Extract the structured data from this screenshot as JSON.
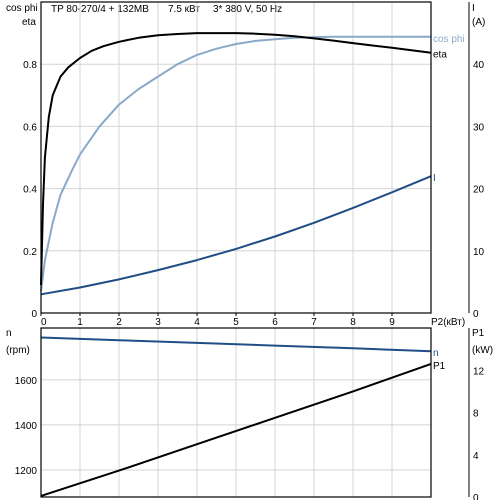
{
  "header": {
    "model": "TP 80-270/4 + 132MB",
    "power": "7.5 кВт",
    "supply": "3* 380 V, 50 Hz"
  },
  "colors": {
    "axes": "#000000",
    "cosphi": "#8aa9c8",
    "eta": "#000000",
    "current": "#1f4e87",
    "speed": "#1f4e87",
    "p1": "#000000",
    "grid": "#d4d4d4"
  },
  "chart_data": [
    {
      "type": "line",
      "xlabel": "P2(кВт)",
      "x_ticks": [
        "0",
        "1",
        "2",
        "3",
        "4",
        "5",
        "6",
        "7",
        "8",
        "9"
      ],
      "xlim": [
        0,
        10
      ],
      "grid": true,
      "left_axis": {
        "label_lines": [
          "cos phi",
          "eta"
        ],
        "ticks": [
          "0",
          "0.2",
          "0.4",
          "0.6",
          "0.8"
        ],
        "ylim": [
          0,
          1.0
        ]
      },
      "right_axis": {
        "label_lines": [
          "I",
          "(A)"
        ],
        "ticks": [
          "0",
          "10",
          "20",
          "30",
          "40"
        ],
        "ylim": [
          0,
          50
        ]
      },
      "series": [
        {
          "name": "cos phi",
          "axis": "left",
          "color": "#8aa9c8",
          "x": [
            0.0,
            0.1,
            0.3,
            0.5,
            0.8,
            1.0,
            1.5,
            2.0,
            2.5,
            3.0,
            3.5,
            4.0,
            4.5,
            5.0,
            5.5,
            6.0,
            6.5,
            7.0,
            7.5,
            8.0,
            8.5,
            9.0,
            9.5,
            10.0
          ],
          "y": [
            0.07,
            0.17,
            0.29,
            0.38,
            0.46,
            0.51,
            0.6,
            0.67,
            0.72,
            0.76,
            0.8,
            0.83,
            0.85,
            0.865,
            0.875,
            0.88,
            0.885,
            0.887,
            0.888,
            0.888,
            0.888,
            0.888,
            0.888,
            0.888
          ]
        },
        {
          "name": "eta",
          "axis": "left",
          "color": "#000000",
          "x": [
            0.0,
            0.05,
            0.1,
            0.2,
            0.3,
            0.5,
            0.7,
            1.0,
            1.3,
            1.6,
            2.0,
            2.5,
            3.0,
            3.5,
            4.0,
            4.5,
            5.0,
            5.5,
            6.0,
            6.5,
            7.0,
            7.5,
            8.0,
            8.5,
            9.0,
            9.5,
            10.0
          ],
          "y": [
            0.09,
            0.35,
            0.5,
            0.63,
            0.7,
            0.76,
            0.79,
            0.82,
            0.843,
            0.858,
            0.872,
            0.885,
            0.893,
            0.897,
            0.9,
            0.9,
            0.9,
            0.898,
            0.895,
            0.89,
            0.883,
            0.876,
            0.868,
            0.86,
            0.853,
            0.845,
            0.837
          ]
        },
        {
          "name": "I",
          "axis": "right",
          "color": "#1f4e87",
          "x": [
            0.0,
            1.0,
            2.0,
            3.0,
            4.0,
            5.0,
            6.0,
            7.0,
            8.0,
            9.0,
            10.0
          ],
          "y": [
            3.0,
            4.1,
            5.4,
            6.9,
            8.5,
            10.3,
            12.3,
            14.5,
            16.9,
            19.4,
            22.0
          ]
        }
      ]
    },
    {
      "type": "line",
      "xlim": [
        0,
        10
      ],
      "grid": true,
      "left_axis": {
        "label_lines": [
          "n",
          "(rpm)"
        ],
        "ticks": [
          "1200",
          "1400",
          "1600"
        ],
        "ylim": [
          1080,
          1830
        ]
      },
      "right_axis": {
        "label_lines": [
          "P1",
          "(kW)"
        ],
        "ticks": [
          "0",
          "4",
          "8",
          "12"
        ],
        "ylim": [
          0,
          16
        ]
      },
      "series": [
        {
          "name": "n",
          "axis": "left",
          "color": "#1f4e87",
          "x": [
            0,
            2,
            4,
            6,
            8,
            10
          ],
          "y": [
            1788,
            1776,
            1764,
            1752,
            1740,
            1727
          ]
        },
        {
          "name": "P1",
          "axis": "right",
          "color": "#000000",
          "x": [
            0,
            2,
            4,
            6,
            8,
            10
          ],
          "y": [
            0.1,
            2.5,
            5.0,
            7.5,
            10.0,
            12.6
          ]
        }
      ]
    }
  ]
}
